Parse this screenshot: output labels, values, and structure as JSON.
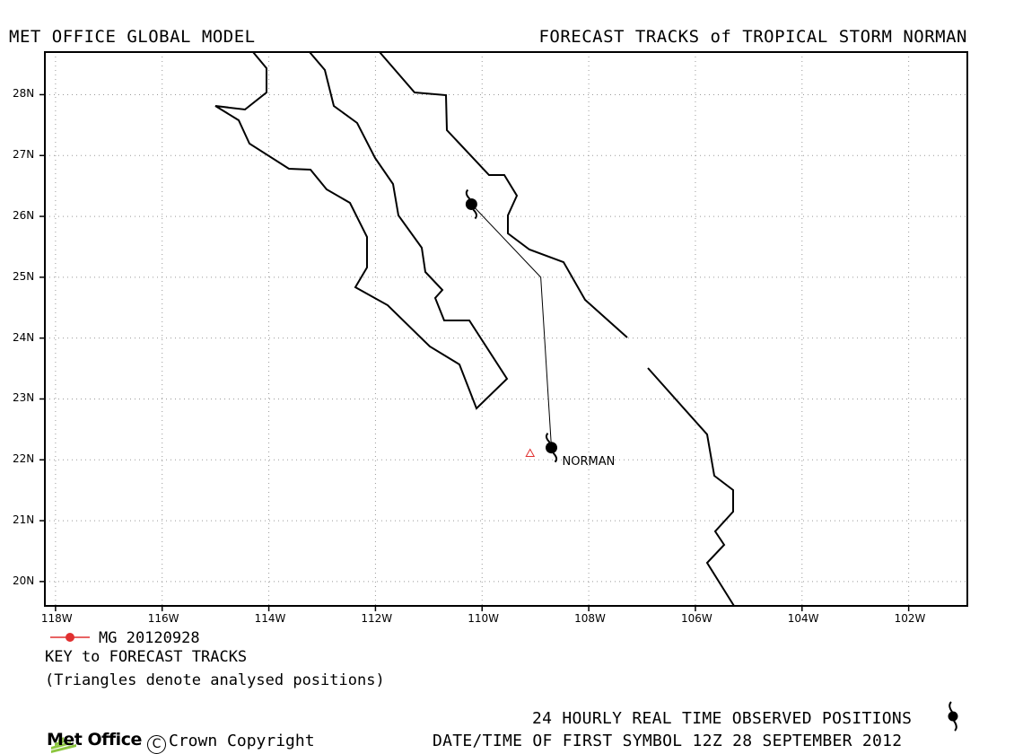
{
  "header": {
    "left_title": "MET OFFICE GLOBAL MODEL",
    "right_title": "FORECAST TRACKS of TROPICAL STORM NORMAN"
  },
  "map": {
    "lon_range": [
      -118.2,
      -100.9
    ],
    "lat_range": [
      19.6,
      28.7
    ],
    "lat_ticks": [
      "20N",
      "21N",
      "22N",
      "23N",
      "24N",
      "25N",
      "26N",
      "27N",
      "28N"
    ],
    "lon_ticks": [
      "118W",
      "116W",
      "114W",
      "112W",
      "110W",
      "108W",
      "106W",
      "104W",
      "102W"
    ],
    "grid": true,
    "storm_label": "NORMAN",
    "track": [
      {
        "lon": -108.7,
        "lat": 22.2
      },
      {
        "lon": -108.9,
        "lat": 25.0
      },
      {
        "lon": -110.2,
        "lat": 26.2
      }
    ],
    "analysed_positions": [
      {
        "lon": -109.1,
        "lat": 22.1
      }
    ],
    "colors": {
      "track": "#000000",
      "analysed": "#e03030",
      "key": "#e03030",
      "coast": "#000000",
      "grid": "#999999"
    }
  },
  "key": {
    "model_run": "MG 20120928",
    "title": "KEY to FORECAST TRACKS",
    "note": "(Triangles denote analysed positions)"
  },
  "footer": {
    "observed": "24 HOURLY REAL TIME OBSERVED POSITIONS",
    "datetime": "DATE/TIME OF FIRST SYMBOL 12Z 28 SEPTEMBER 2012",
    "logo": "Met Office",
    "copyright": "Crown Copyright"
  }
}
